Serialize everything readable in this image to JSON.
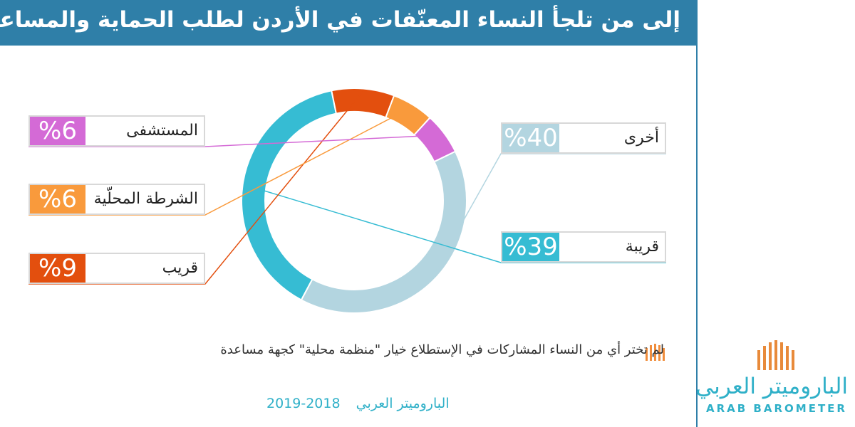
{
  "title": "إلى من تلجأ النساء المعنّفات في الأردن لطلب الحماية والمساعدة؟",
  "chart_data": {
    "type": "pie",
    "title": "إلى من تلجأ النساء المعنّفات في الأردن لطلب الحماية والمساعدة؟",
    "slices": [
      {
        "label": "أخرى",
        "value": 40,
        "display": "%40",
        "color": "#b3d5e0"
      },
      {
        "label": "قريبة",
        "value": 39,
        "display": "%39",
        "color": "#36bcd3"
      },
      {
        "label": "قريب",
        "value": 9,
        "display": "%9",
        "color": "#e34f0e"
      },
      {
        "label": "الشرطة المحلّية",
        "value": 6,
        "display": "%6",
        "color": "#f99a3c"
      },
      {
        "label": "المستشفى",
        "value": 6,
        "display": "%6",
        "color": "#d46ad6"
      }
    ]
  },
  "note": "لم تختر أي من النساء المشاركات في الإستطلاع خيار \"منظمة محلية\"  كجهة مساعدة",
  "footer": {
    "source": "الباروميتر العربي",
    "years": "2019-2018"
  },
  "logo": {
    "arabic": "الباروميتر العربي",
    "english": "ARAB BAROMETER"
  },
  "colors": {
    "header": "#2f7fa8",
    "accent": "#2fb0c8",
    "note_icon": "#f08d3c"
  }
}
